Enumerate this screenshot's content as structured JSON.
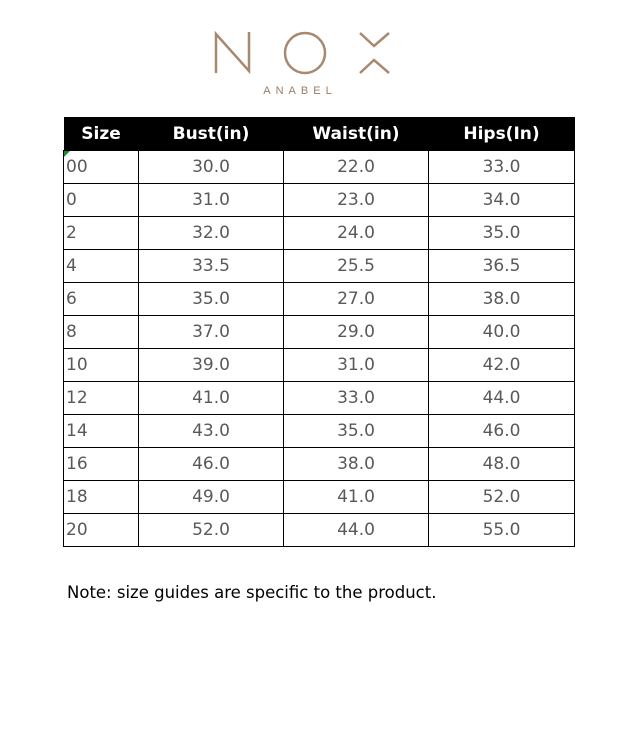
{
  "brand": {
    "logo_text": "NOX",
    "subtitle": "ANABEL",
    "logo_color": "#a8896f"
  },
  "table": {
    "headers": [
      "Size",
      "Bust(in)",
      "Waist(in)",
      "Hips(In)"
    ],
    "rows": [
      [
        "00",
        "30.0",
        "22.0",
        "33.0"
      ],
      [
        "0",
        "31.0",
        "23.0",
        "34.0"
      ],
      [
        "2",
        "32.0",
        "24.0",
        "35.0"
      ],
      [
        "4",
        "33.5",
        "25.5",
        "36.5"
      ],
      [
        "6",
        "35.0",
        "27.0",
        "38.0"
      ],
      [
        "8",
        "37.0",
        "29.0",
        "40.0"
      ],
      [
        "10",
        "39.0",
        "31.0",
        "42.0"
      ],
      [
        "12",
        "41.0",
        "33.0",
        "44.0"
      ],
      [
        "14",
        "43.0",
        "35.0",
        "46.0"
      ],
      [
        "16",
        "46.0",
        "38.0",
        "48.0"
      ],
      [
        "18",
        "49.0",
        "41.0",
        "52.0"
      ],
      [
        "20",
        "52.0",
        "44.0",
        "55.0"
      ]
    ]
  },
  "note": "Note: size guides are specific to the product."
}
